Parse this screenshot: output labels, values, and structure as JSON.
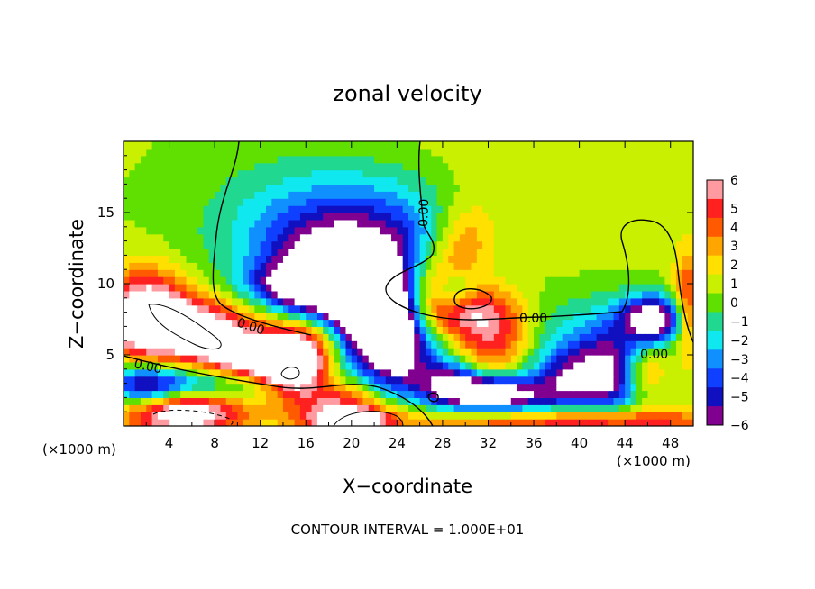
{
  "chart_data": {
    "type": "heatmap",
    "title": "zonal velocity",
    "xlabel": "X−coordinate",
    "ylabel": "Z−coordinate",
    "x_multiplier_label": "(×1000 m)",
    "x_multiplier_label_right": "(×1000 m)",
    "footer": "CONTOUR INTERVAL = 1.000E+01",
    "xlim": [
      0,
      50
    ],
    "ylim": [
      0,
      20
    ],
    "x_ticks": [
      4,
      8,
      12,
      16,
      20,
      24,
      28,
      32,
      36,
      40,
      44,
      48
    ],
    "x_tick_labels": [
      "4",
      "8",
      "12",
      "16",
      "20",
      "24",
      "28",
      "32",
      "36",
      "40",
      "44",
      "48"
    ],
    "y_ticks": [
      5,
      10,
      15
    ],
    "y_tick_labels": [
      "5",
      "10",
      "15"
    ],
    "colorbar": {
      "levels": [
        6,
        5,
        4,
        3,
        2,
        1,
        0,
        -1,
        -2,
        -3,
        -4,
        -5,
        -6
      ],
      "labels": [
        "6",
        "5",
        "4",
        "3",
        "2",
        "1",
        "0",
        "−1",
        "−2",
        "−3",
        "−4",
        "−5",
        "−6"
      ],
      "colors": [
        "#ff9aa0",
        "#ff2020",
        "#ff5a00",
        "#ffa500",
        "#ffe000",
        "#c8f000",
        "#60e000",
        "#20d890",
        "#10e8f0",
        "#1090ff",
        "#1040ff",
        "#1010c0",
        "#800090"
      ]
    },
    "contour_labels": [
      "0.00",
      "0.00",
      "0.00",
      "0.00",
      "0.00"
    ],
    "field_features": [
      {
        "x": 20.5,
        "z": 13.5,
        "amplitude": -5.5,
        "sx": 7.0,
        "sz": 3.2
      },
      {
        "x": 19.0,
        "z": 10.5,
        "amplitude": -6.5,
        "sx": 4.0,
        "sz": 2.4
      },
      {
        "x": 15.0,
        "z": 9.8,
        "amplitude": -5.0,
        "sx": 3.0,
        "sz": 1.2
      },
      {
        "x": 21.5,
        "z": 7.5,
        "amplitude": -9.0,
        "sx": 2.8,
        "sz": 2.0
      },
      {
        "x": 23.5,
        "z": 6.5,
        "amplitude": -3.5,
        "sx": 1.8,
        "sz": 3.5
      },
      {
        "x": 5.5,
        "z": 6.8,
        "amplitude": 8.0,
        "sx": 4.8,
        "sz": 1.6
      },
      {
        "x": 11.5,
        "z": 4.5,
        "amplitude": 8.0,
        "sx": 3.0,
        "sz": 1.3
      },
      {
        "x": 2.0,
        "z": 8.5,
        "amplitude": 6.0,
        "sx": 2.5,
        "sz": 2.0
      },
      {
        "x": 15.0,
        "z": 4.0,
        "amplitude": 9.0,
        "sx": 2.0,
        "sz": 1.4
      },
      {
        "x": 9.0,
        "z": 3.0,
        "amplitude": -5.0,
        "sx": 8.0,
        "sz": 0.9
      },
      {
        "x": 5.0,
        "z": 1.0,
        "amplitude": 8.5,
        "sx": 4.0,
        "sz": 1.1
      },
      {
        "x": 19.0,
        "z": 2.2,
        "amplitude": 5.0,
        "sx": 3.0,
        "sz": 1.0
      },
      {
        "x": 20.0,
        "z": 0.4,
        "amplitude": 8.0,
        "sx": 3.0,
        "sz": 0.7
      },
      {
        "x": 17.0,
        "z": 6.5,
        "amplitude": 4.0,
        "sx": 2.5,
        "sz": 1.2
      },
      {
        "x": 27.5,
        "z": 9.5,
        "amplitude": 5.0,
        "sx": 2.0,
        "sz": 2.0
      },
      {
        "x": 31.0,
        "z": 8.0,
        "amplitude": 5.0,
        "sx": 3.0,
        "sz": 1.4
      },
      {
        "x": 30.0,
        "z": 13.0,
        "amplitude": 3.5,
        "sx": 2.0,
        "sz": 2.0
      },
      {
        "x": 32.5,
        "z": 5.5,
        "amplitude": 4.0,
        "sx": 2.5,
        "sz": 1.6
      },
      {
        "x": 32.0,
        "z": 2.3,
        "amplitude": -8.5,
        "sx": 2.6,
        "sz": 0.9
      },
      {
        "x": 28.5,
        "z": 3.0,
        "amplitude": -5.0,
        "sx": 2.0,
        "sz": 1.2
      },
      {
        "x": 29.0,
        "z": 9.5,
        "amplitude": -4.5,
        "sx": 1.3,
        "sz": 1.0
      },
      {
        "x": 25.0,
        "z": 5.0,
        "amplitude": -4.0,
        "sx": 3.0,
        "sz": 2.0
      },
      {
        "x": 40.0,
        "z": 3.5,
        "amplitude": -6.0,
        "sx": 3.0,
        "sz": 1.5
      },
      {
        "x": 36.5,
        "z": 1.8,
        "amplitude": -3.0,
        "sx": 3.0,
        "sz": 1.2
      },
      {
        "x": 46.5,
        "z": 7.5,
        "amplitude": -9.0,
        "sx": 1.8,
        "sz": 1.2
      },
      {
        "x": 43.5,
        "z": 4.0,
        "amplitude": -4.5,
        "sx": 2.0,
        "sz": 2.5
      },
      {
        "x": 40.0,
        "z": 6.5,
        "amplitude": -2.5,
        "sx": 4.0,
        "sz": 2.0
      },
      {
        "x": 45.5,
        "z": 4.0,
        "amplitude": 4.5,
        "sx": 1.5,
        "sz": 1.6
      },
      {
        "x": 49.5,
        "z": 8.5,
        "amplitude": 4.5,
        "sx": 0.9,
        "sz": 2.5
      },
      {
        "x": 40.0,
        "z": 0.3,
        "amplitude": 6.0,
        "sx": 9.0,
        "sz": 0.7
      },
      {
        "x": 2.0,
        "z": 2.5,
        "amplitude": -4.5,
        "sx": 2.2,
        "sz": 1.2
      },
      {
        "x": 35.0,
        "z": 17.0,
        "amplitude": 1.0,
        "sx": 10.0,
        "sz": 4.0
      },
      {
        "x": 12.0,
        "z": 15.0,
        "amplitude": -0.5,
        "sx": 6.0,
        "sz": 4.0
      }
    ]
  }
}
